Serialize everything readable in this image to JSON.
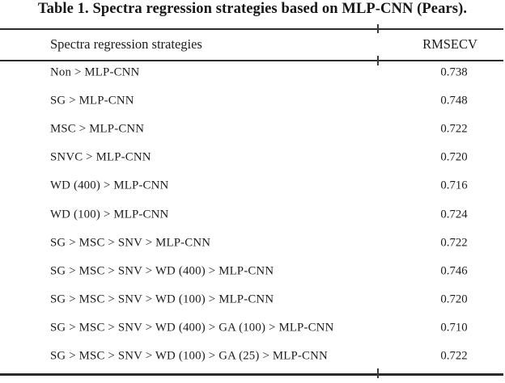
{
  "title": "Table 1. Spectra regression strategies based on MLP-CNN (Pears).",
  "table": {
    "header": {
      "strategy": "Spectra regression strategies",
      "rmsecv": "RMSECV"
    },
    "rows": [
      {
        "strategy": "Non > MLP-CNN",
        "rmsecv": "0.738"
      },
      {
        "strategy": "SG > MLP-CNN",
        "rmsecv": "0.748"
      },
      {
        "strategy": "MSC > MLP-CNN",
        "rmsecv": "0.722"
      },
      {
        "strategy": "SNVC > MLP-CNN",
        "rmsecv": "0.720"
      },
      {
        "strategy": "WD (400) > MLP-CNN",
        "rmsecv": "0.716"
      },
      {
        "strategy": "WD (100) > MLP-CNN",
        "rmsecv": "0.724"
      },
      {
        "strategy": "SG > MSC > SNV > MLP-CNN",
        "rmsecv": "0.722"
      },
      {
        "strategy": "SG > MSC > SNV > WD (400) > MLP-CNN",
        "rmsecv": "0.746"
      },
      {
        "strategy": "SG > MSC > SNV > WD (100) > MLP-CNN",
        "rmsecv": "0.720"
      },
      {
        "strategy": "SG > MSC > SNV > WD (400) > GA (100) > MLP-CNN",
        "rmsecv": "0.710"
      },
      {
        "strategy": "SG > MSC > SNV > WD (100) > GA (25) > MLP-CNN",
        "rmsecv": "0.722"
      }
    ]
  },
  "colors": {
    "background": "#ffffff",
    "text": "#1c1c1c",
    "rule": "#2b2b2b"
  }
}
